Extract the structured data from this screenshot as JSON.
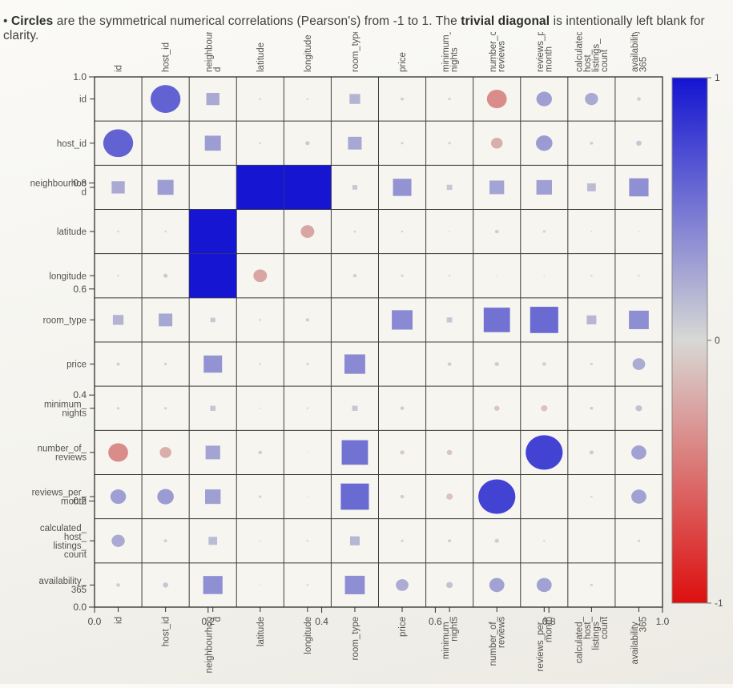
{
  "caption": {
    "bullet": "•",
    "term_circles": "Circles",
    "text_mid": " are the symmetrical numerical correlations (Pearson's) from -1 to 1. The ",
    "term_diagonal": "trivial diagonal",
    "text_end": " is intentionally left blank for clarity."
  },
  "chart_data": {
    "type": "correlation-matrix",
    "title": "Pearson correlation matrix with circle/square markers sized and colored by r; diagonal intentionally blank",
    "variables": [
      "id",
      "host_id",
      "neighbourhood",
      "latitude",
      "longitude",
      "room_type",
      "price",
      "minimum_nights",
      "number_of_reviews",
      "reviews_per_month",
      "calculated_host_listings_count",
      "availability_365"
    ],
    "variable_label_lines": [
      [
        "id"
      ],
      [
        "host_id"
      ],
      [
        "neighbourhoo",
        "d"
      ],
      [
        "latitude"
      ],
      [
        "longitude"
      ],
      [
        "room_type"
      ],
      [
        "price"
      ],
      [
        "minimum_",
        "nights"
      ],
      [
        "number_of_",
        "reviews"
      ],
      [
        "reviews_per_",
        "month"
      ],
      [
        "calculated_",
        "host_",
        "listings_",
        "count"
      ],
      [
        "availability_",
        "365"
      ]
    ],
    "categorical_square_variables": [
      "neighbourhood",
      "room_type"
    ],
    "diagonal": "blank",
    "correlations": [
      {
        "x": "id",
        "y": "host_id",
        "r": 0.6
      },
      {
        "x": "id",
        "y": "neighbourhood",
        "r": 0.24
      },
      {
        "x": "id",
        "y": "latitude",
        "r": 0.03
      },
      {
        "x": "id",
        "y": "longitude",
        "r": 0.03
      },
      {
        "x": "id",
        "y": "room_type",
        "r": 0.19
      },
      {
        "x": "id",
        "y": "price",
        "r": 0.05
      },
      {
        "x": "id",
        "y": "minimum_nights",
        "r": 0.04
      },
      {
        "x": "id",
        "y": "number_of_reviews",
        "r": -0.38
      },
      {
        "x": "id",
        "y": "reviews_per_month",
        "r": 0.29
      },
      {
        "x": "id",
        "y": "calculated_host_listings_count",
        "r": 0.24
      },
      {
        "x": "id",
        "y": "availability_365",
        "r": 0.06
      },
      {
        "x": "host_id",
        "y": "neighbourhood",
        "r": 0.3
      },
      {
        "x": "host_id",
        "y": "latitude",
        "r": 0.03
      },
      {
        "x": "host_id",
        "y": "longitude",
        "r": 0.07
      },
      {
        "x": "host_id",
        "y": "room_type",
        "r": 0.25
      },
      {
        "x": "host_id",
        "y": "price",
        "r": 0.04
      },
      {
        "x": "host_id",
        "y": "minimum_nights",
        "r": 0.04
      },
      {
        "x": "host_id",
        "y": "number_of_reviews",
        "r": -0.21
      },
      {
        "x": "host_id",
        "y": "reviews_per_month",
        "r": 0.31
      },
      {
        "x": "host_id",
        "y": "calculated_host_listings_count",
        "r": 0.05
      },
      {
        "x": "host_id",
        "y": "availability_365",
        "r": 0.09
      },
      {
        "x": "neighbourhood",
        "y": "latitude",
        "r": 0.99
      },
      {
        "x": "neighbourhood",
        "y": "longitude",
        "r": 0.99
      },
      {
        "x": "neighbourhood",
        "y": "room_type",
        "r": 0.08
      },
      {
        "x": "neighbourhood",
        "y": "price",
        "r": 0.35
      },
      {
        "x": "neighbourhood",
        "y": "minimum_nights",
        "r": 0.09
      },
      {
        "x": "neighbourhood",
        "y": "number_of_reviews",
        "r": 0.27
      },
      {
        "x": "neighbourhood",
        "y": "reviews_per_month",
        "r": 0.29
      },
      {
        "x": "neighbourhood",
        "y": "calculated_host_listings_count",
        "r": 0.15
      },
      {
        "x": "neighbourhood",
        "y": "availability_365",
        "r": 0.37
      },
      {
        "x": "latitude",
        "y": "longitude",
        "r": -0.25
      },
      {
        "x": "latitude",
        "y": "room_type",
        "r": -0.03
      },
      {
        "x": "latitude",
        "y": "price",
        "r": 0.03
      },
      {
        "x": "latitude",
        "y": "minimum_nights",
        "r": 0.02
      },
      {
        "x": "latitude",
        "y": "number_of_reviews",
        "r": 0.06
      },
      {
        "x": "latitude",
        "y": "reviews_per_month",
        "r": 0.04
      },
      {
        "x": "latitude",
        "y": "calculated_host_listings_count",
        "r": 0.02
      },
      {
        "x": "latitude",
        "y": "availability_365",
        "r": -0.02
      },
      {
        "x": "longitude",
        "y": "room_type",
        "r": 0.05
      },
      {
        "x": "longitude",
        "y": "price",
        "r": -0.04
      },
      {
        "x": "longitude",
        "y": "minimum_nights",
        "r": -0.03
      },
      {
        "x": "longitude",
        "y": "number_of_reviews",
        "r": 0.01
      },
      {
        "x": "longitude",
        "y": "reviews_per_month",
        "r": 0.01
      },
      {
        "x": "longitude",
        "y": "calculated_host_listings_count",
        "r": -0.03
      },
      {
        "x": "longitude",
        "y": "availability_365",
        "r": 0.03
      },
      {
        "x": "room_type",
        "y": "price",
        "r": 0.4
      },
      {
        "x": "room_type",
        "y": "minimum_nights",
        "r": 0.09
      },
      {
        "x": "room_type",
        "y": "number_of_reviews",
        "r": 0.52
      },
      {
        "x": "room_type",
        "y": "reviews_per_month",
        "r": 0.56
      },
      {
        "x": "room_type",
        "y": "calculated_host_listings_count",
        "r": 0.17
      },
      {
        "x": "room_type",
        "y": "availability_365",
        "r": 0.38
      },
      {
        "x": "price",
        "y": "minimum_nights",
        "r": 0.06
      },
      {
        "x": "price",
        "y": "number_of_reviews",
        "r": -0.07
      },
      {
        "x": "price",
        "y": "reviews_per_month",
        "r": -0.06
      },
      {
        "x": "price",
        "y": "calculated_host_listings_count",
        "r": 0.04
      },
      {
        "x": "price",
        "y": "availability_365",
        "r": 0.23
      },
      {
        "x": "minimum_nights",
        "y": "number_of_reviews",
        "r": -0.09
      },
      {
        "x": "minimum_nights",
        "y": "reviews_per_month",
        "r": -0.11
      },
      {
        "x": "minimum_nights",
        "y": "calculated_host_listings_count",
        "r": 0.05
      },
      {
        "x": "minimum_nights",
        "y": "availability_365",
        "r": 0.11
      },
      {
        "x": "number_of_reviews",
        "y": "reviews_per_month",
        "r": 0.76
      },
      {
        "x": "number_of_reviews",
        "y": "calculated_host_listings_count",
        "r": -0.07
      },
      {
        "x": "number_of_reviews",
        "y": "availability_365",
        "r": 0.28
      },
      {
        "x": "reviews_per_month",
        "y": "calculated_host_listings_count",
        "r": 0.03
      },
      {
        "x": "reviews_per_month",
        "y": "availability_365",
        "r": 0.28
      },
      {
        "x": "calculated_host_listings_count",
        "y": "availability_365",
        "r": 0.04
      }
    ],
    "axis": {
      "x_numeric_tick_labels": [
        "0.0",
        "0.2",
        "0.4",
        "0.6",
        "0.8",
        "1.0"
      ],
      "y_numeric_tick_labels": [
        "1.0",
        "0.8",
        "0.6",
        "0.4",
        "0.2",
        "0.0"
      ],
      "numeric_range": [
        0,
        1
      ]
    },
    "colorbar": {
      "tick_labels": [
        "1",
        "0",
        "-1"
      ],
      "max": 1,
      "mid": 0,
      "min": -1,
      "color_max": "#1414d2",
      "color_mid": "#d8d8d5",
      "color_min": "#dd0f0f"
    },
    "style": {
      "grid_line_color": "#3e3e3e",
      "outer_border_color": "#2f2f2f",
      "plot_bg": "#f6f5ef",
      "axis_label_color": "#55524d",
      "numeric_label_color": "#4a4a48"
    }
  }
}
